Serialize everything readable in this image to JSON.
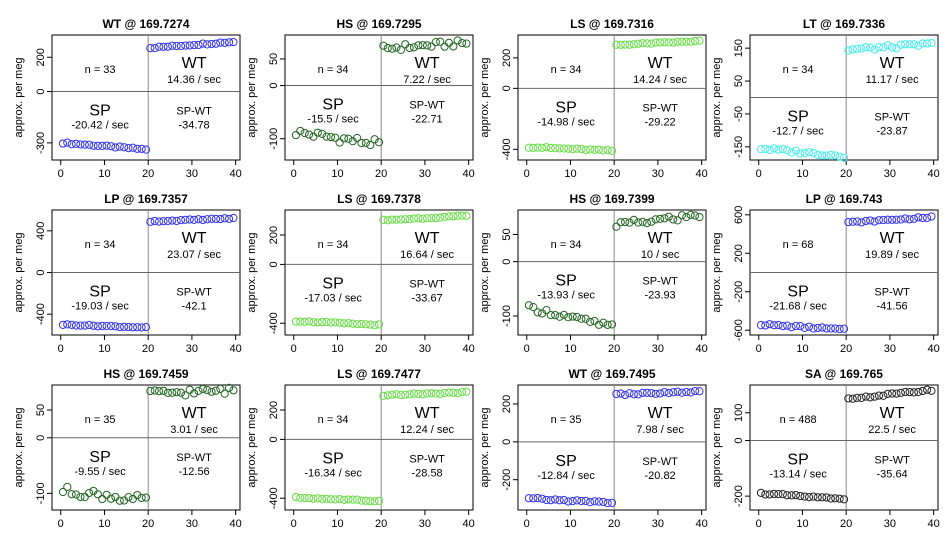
{
  "y_label": "approx. per meg",
  "chart_data": [
    {
      "type": "scatter",
      "title": "WT @ 169.7274",
      "n": "n = 33",
      "color": "#3333ee",
      "yticks": [
        -300,
        0,
        200
      ],
      "ylim": [
        -400,
        330
      ],
      "wt": {
        "label": "WT",
        "rate": "14.36 / sec",
        "start": 255,
        "end": 290,
        "noise": 4
      },
      "sp": {
        "label": "SP",
        "rate": "-20.42 / sec",
        "start": -300,
        "end": -338,
        "noise": 4
      },
      "diff": {
        "label": "SP-WT",
        "value": "-34.78"
      }
    },
    {
      "type": "scatter",
      "title": "HS @ 169.7295",
      "n": "n = 34",
      "color": "#226622",
      "yticks": [
        -100,
        0,
        50
      ],
      "ylim": [
        -140,
        95
      ],
      "wt": {
        "label": "WT",
        "rate": "7.22 / sec",
        "start": 70,
        "end": 80,
        "noise": 6
      },
      "sp": {
        "label": "SP",
        "rate": "-15.5 / sec",
        "start": -88,
        "end": -110,
        "noise": 8
      },
      "diff": {
        "label": "SP-WT",
        "value": "-22.71"
      }
    },
    {
      "type": "scatter",
      "title": "LS @ 169.7316",
      "n": "n = 34",
      "color": "#66dd44",
      "yticks": [
        -400,
        0,
        200
      ],
      "ylim": [
        -470,
        350
      ],
      "wt": {
        "label": "WT",
        "rate": "14.24 / sec",
        "start": 285,
        "end": 310,
        "noise": 4
      },
      "sp": {
        "label": "SP",
        "rate": "-14.98 / sec",
        "start": -385,
        "end": -410,
        "noise": 5
      },
      "diff": {
        "label": "SP-WT",
        "value": "-29.22"
      }
    },
    {
      "type": "scatter",
      "title": "LT @ 169.7336",
      "n": "n = 34",
      "color": "#44eeee",
      "yticks": [
        -150,
        -50,
        50,
        150
      ],
      "ylim": [
        -190,
        190
      ],
      "wt": {
        "label": "WT",
        "rate": "11.17 / sec",
        "start": 145,
        "end": 162,
        "noise": 6
      },
      "sp": {
        "label": "SP",
        "rate": "-12.7 / sec",
        "start": -155,
        "end": -178,
        "noise": 5
      },
      "diff": {
        "label": "SP-WT",
        "value": "-23.87"
      }
    },
    {
      "type": "scatter",
      "title": "LP @ 169.7357",
      "n": "n = 34",
      "color": "#3333ee",
      "yticks": [
        -400,
        0,
        400
      ],
      "ylim": [
        -600,
        600
      ],
      "wt": {
        "label": "WT",
        "rate": "23.07 / sec",
        "start": 490,
        "end": 520,
        "noise": 5
      },
      "sp": {
        "label": "SP",
        "rate": "-19.03 / sec",
        "start": -500,
        "end": -528,
        "noise": 5
      },
      "diff": {
        "label": "SP-WT",
        "value": "-42.1"
      }
    },
    {
      "type": "scatter",
      "title": "LS @ 169.7378",
      "n": "n = 34",
      "color": "#66dd44",
      "yticks": [
        -400,
        0,
        200
      ],
      "ylim": [
        -480,
        370
      ],
      "wt": {
        "label": "WT",
        "rate": "16.64 / sec",
        "start": 300,
        "end": 330,
        "noise": 4
      },
      "sp": {
        "label": "SP",
        "rate": "-17.03 / sec",
        "start": -385,
        "end": -412,
        "noise": 4
      },
      "diff": {
        "label": "SP-WT",
        "value": "-33.67"
      }
    },
    {
      "type": "scatter",
      "title": "HS @ 169.7399",
      "n": "n = 34",
      "color": "#226622",
      "yticks": [
        -100,
        0,
        50
      ],
      "ylim": [
        -135,
        95
      ],
      "wt": {
        "label": "WT",
        "rate": "10 / sec",
        "start": 68,
        "end": 85,
        "noise": 6
      },
      "sp": {
        "label": "SP",
        "rate": "-13.93 / sec",
        "start": -85,
        "end": -120,
        "noise": 5
      },
      "diff": {
        "label": "SP-WT",
        "value": "-23.93"
      }
    },
    {
      "type": "scatter",
      "title": "LP @ 169.743",
      "n": "n = 68",
      "color": "#3333ee",
      "yticks": [
        -600,
        -200,
        200,
        600
      ],
      "ylim": [
        -650,
        650
      ],
      "wt": {
        "label": "WT",
        "rate": "19.89 / sec",
        "start": 520,
        "end": 575,
        "noise": 8
      },
      "sp": {
        "label": "SP",
        "rate": "-21.68 / sec",
        "start": -540,
        "end": -595,
        "noise": 10
      },
      "diff": {
        "label": "SP-WT",
        "value": "-41.56"
      }
    },
    {
      "type": "scatter",
      "title": "HS @ 169.7459",
      "n": "n = 35",
      "color": "#226622",
      "yticks": [
        -100,
        0,
        50
      ],
      "ylim": [
        -130,
        95
      ],
      "wt": {
        "label": "WT",
        "rate": "3.01 / sec",
        "start": 80,
        "end": 85,
        "noise": 6
      },
      "sp": {
        "label": "SP",
        "rate": "-9.55 / sec",
        "start": -95,
        "end": -113,
        "noise": 8
      },
      "diff": {
        "label": "SP-WT",
        "value": "-12.56"
      }
    },
    {
      "type": "scatter",
      "title": "LS @ 169.7477",
      "n": "n = 34",
      "color": "#66dd44",
      "yticks": [
        -400,
        0,
        200
      ],
      "ylim": [
        -480,
        370
      ],
      "wt": {
        "label": "WT",
        "rate": "12.24 / sec",
        "start": 300,
        "end": 320,
        "noise": 4
      },
      "sp": {
        "label": "SP",
        "rate": "-16.34 / sec",
        "start": -395,
        "end": -420,
        "noise": 4
      },
      "diff": {
        "label": "SP-WT",
        "value": "-28.58"
      }
    },
    {
      "type": "scatter",
      "title": "WT @ 169.7495",
      "n": "n = 35",
      "color": "#3333ee",
      "yticks": [
        -200,
        0,
        200
      ],
      "ylim": [
        -360,
        300
      ],
      "wt": {
        "label": "WT",
        "rate": "7.98 / sec",
        "start": 250,
        "end": 265,
        "noise": 5
      },
      "sp": {
        "label": "SP",
        "rate": "-12.84 / sec",
        "start": -300,
        "end": -322,
        "noise": 5
      },
      "diff": {
        "label": "SP-WT",
        "value": "-20.82"
      }
    },
    {
      "type": "scatter",
      "title": "SA @ 169.765",
      "n": "n = 488",
      "color": "#222222",
      "yticks": [
        -200,
        0,
        100
      ],
      "ylim": [
        -250,
        200
      ],
      "wt": {
        "label": "WT",
        "rate": "22.5 / sec",
        "start": 150,
        "end": 182,
        "noise": 3
      },
      "sp": {
        "label": "SP",
        "rate": "-13.14 / sec",
        "start": -190,
        "end": -212,
        "noise": 3
      },
      "diff": {
        "label": "SP-WT",
        "value": "-35.64"
      }
    }
  ]
}
